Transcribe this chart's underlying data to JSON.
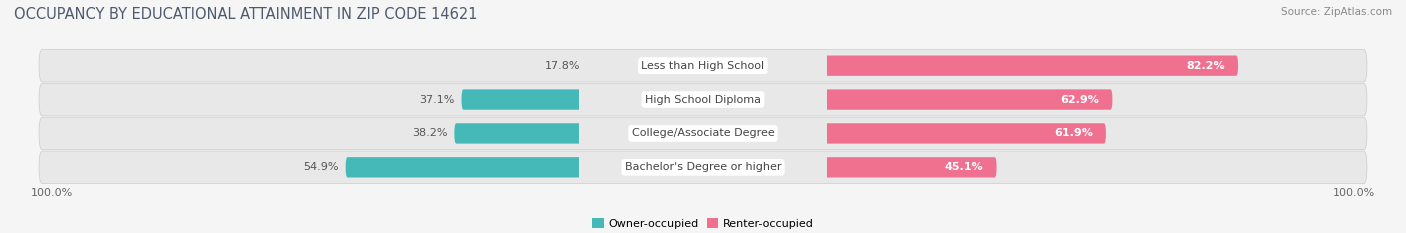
{
  "title": "OCCUPANCY BY EDUCATIONAL ATTAINMENT IN ZIP CODE 14621",
  "source": "Source: ZipAtlas.com",
  "categories": [
    "Less than High School",
    "High School Diploma",
    "College/Associate Degree",
    "Bachelor's Degree or higher"
  ],
  "owner_values": [
    17.8,
    37.1,
    38.2,
    54.9
  ],
  "renter_values": [
    82.2,
    62.9,
    61.9,
    45.1
  ],
  "owner_color": "#45b8b8",
  "renter_color": "#f07090",
  "renter_color_light": "#f898b0",
  "background_color": "#f5f5f5",
  "row_color": "#e8e8e8",
  "title_fontsize": 10.5,
  "source_fontsize": 7.5,
  "label_fontsize": 8,
  "pct_fontsize": 8,
  "legend_fontsize": 8,
  "left_label": "100.0%",
  "right_label": "100.0%"
}
